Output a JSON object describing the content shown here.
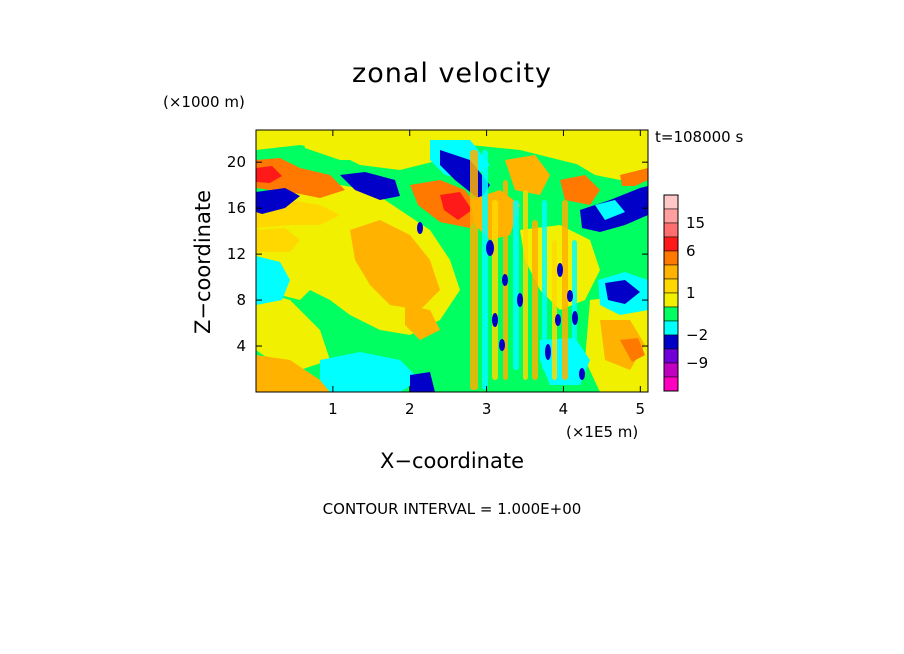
{
  "chart_data": {
    "type": "heatmap",
    "title": "zonal velocity",
    "time_label": "t=108000 s",
    "xlabel": "X−coordinate",
    "ylabel": "Z−coordinate",
    "x_unit": "(×1E5 m)",
    "y_unit": "(×1000 m)",
    "footer": "CONTOUR INTERVAL = 1.000E+00",
    "xlim": [
      0,
      5.1
    ],
    "ylim": [
      0,
      22.8
    ],
    "x_ticks": [
      {
        "value": 1,
        "label": "1"
      },
      {
        "value": 2,
        "label": "2"
      },
      {
        "value": 3,
        "label": "3"
      },
      {
        "value": 4,
        "label": "4"
      },
      {
        "value": 5,
        "label": "5"
      }
    ],
    "y_ticks": [
      {
        "value": 4,
        "label": "4"
      },
      {
        "value": 8,
        "label": "8"
      },
      {
        "value": 12,
        "label": "12"
      },
      {
        "value": 16,
        "label": "16"
      },
      {
        "value": 20,
        "label": "20"
      }
    ],
    "colorbar": {
      "levels": [
        {
          "upper": 21,
          "color": "#ffc8c8"
        },
        {
          "upper": 18,
          "color": "#ff9f9f"
        },
        {
          "upper": 15,
          "color": "#ff6e6e"
        },
        {
          "upper": 9,
          "color": "#ff1a1a"
        },
        {
          "upper": 6,
          "color": "#ff7800"
        },
        {
          "upper": 3,
          "color": "#ffb200"
        },
        {
          "upper": 2,
          "color": "#ffd800"
        },
        {
          "upper": 1,
          "color": "#f0f000"
        },
        {
          "upper": 0,
          "color": "#00ff60"
        },
        {
          "upper": -1,
          "color": "#00ffff"
        },
        {
          "upper": -2,
          "color": "#0000c8"
        },
        {
          "upper": -6,
          "color": "#7000d8"
        },
        {
          "upper": -9,
          "color": "#c000c0"
        },
        {
          "upper": -12,
          "color": "#ff00c0"
        }
      ],
      "labels": [
        {
          "value": 15,
          "label": "15"
        },
        {
          "value": 6,
          "label": "6"
        },
        {
          "value": 1,
          "label": "1"
        },
        {
          "value": -2,
          "label": "−2"
        },
        {
          "value": -9,
          "label": "−9"
        }
      ]
    },
    "palette": {
      "cyan": "#00ffff",
      "green": "#00ff60",
      "yellow": "#f0f000",
      "gold": "#ffd800",
      "orange": "#ffb200",
      "darkorange": "#ff7800",
      "red": "#ff1a1a",
      "darkblue": "#0000c8"
    }
  }
}
